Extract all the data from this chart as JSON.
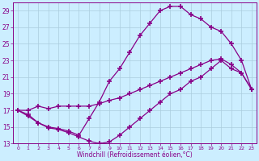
{
  "background_color": "#cceeff",
  "grid_color": "#aaccdd",
  "line_color": "#880088",
  "marker": "+",
  "markersize": 4,
  "markeredgewidth": 1.2,
  "linewidth": 0.9,
  "xlim": [
    -0.5,
    23.5
  ],
  "ylim": [
    13,
    30
  ],
  "yticks": [
    13,
    15,
    17,
    19,
    21,
    23,
    25,
    27,
    29
  ],
  "xticks": [
    0,
    1,
    2,
    3,
    4,
    5,
    6,
    7,
    8,
    9,
    10,
    11,
    12,
    13,
    14,
    15,
    16,
    17,
    18,
    19,
    20,
    21,
    22,
    23
  ],
  "xlabel": "Windchill (Refroidissement éolien,°C)",
  "line1_x": [
    0,
    1,
    2,
    3,
    4,
    5,
    6,
    7,
    8,
    9,
    10,
    11,
    12,
    13,
    14,
    15,
    16,
    17,
    18,
    19,
    20,
    21,
    22,
    23
  ],
  "line1_y": [
    17,
    17,
    17.5,
    17.2,
    17.5,
    17.5,
    17.5,
    17.5,
    17.8,
    18.2,
    18.5,
    19.0,
    19.5,
    20.0,
    20.5,
    21.0,
    21.5,
    22.0,
    22.5,
    23.0,
    23.2,
    22.5,
    21.5,
    19.5
  ],
  "line2_x": [
    0,
    1,
    2,
    3,
    4,
    5,
    6,
    7,
    8,
    9,
    10,
    11,
    12,
    13,
    14,
    15,
    16,
    17,
    18,
    19,
    20,
    21,
    22,
    23
  ],
  "line2_y": [
    17,
    16.5,
    15.5,
    15.0,
    14.8,
    14.5,
    14.0,
    16.0,
    18.0,
    20.5,
    22.0,
    24.0,
    26.0,
    27.5,
    29.0,
    29.5,
    29.5,
    28.5,
    28.0,
    27.0,
    26.5,
    25.0,
    23.0,
    19.5
  ],
  "line3_x": [
    0,
    1,
    2,
    3,
    4,
    5,
    6,
    7,
    8,
    9,
    10,
    11,
    12,
    13,
    14,
    15,
    16,
    17,
    18,
    19,
    20,
    21,
    22,
    23
  ],
  "line3_y": [
    17,
    16.3,
    15.5,
    14.9,
    14.7,
    14.3,
    13.8,
    13.3,
    13.0,
    13.2,
    14.0,
    15.0,
    16.0,
    17.0,
    18.0,
    19.0,
    19.5,
    20.5,
    21.0,
    22.0,
    23.0,
    22.0,
    21.5,
    19.5
  ],
  "line1_markers": [
    0,
    1,
    2,
    3,
    4,
    5,
    6,
    7,
    8,
    9,
    10,
    11,
    12,
    13,
    14,
    15,
    16,
    17,
    18,
    19,
    20,
    21,
    22,
    23
  ],
  "line2_markers": [
    0,
    1,
    2,
    3,
    4,
    5,
    6,
    7,
    8,
    9,
    10,
    11,
    12,
    13,
    14,
    15,
    16,
    17,
    18,
    19,
    20,
    21,
    22,
    23
  ],
  "line3_markers": [
    0,
    1,
    2,
    3,
    4,
    5,
    6,
    7,
    8,
    9,
    10,
    11,
    12,
    13,
    14,
    15,
    16,
    17,
    18,
    19,
    20,
    21,
    22,
    23
  ]
}
